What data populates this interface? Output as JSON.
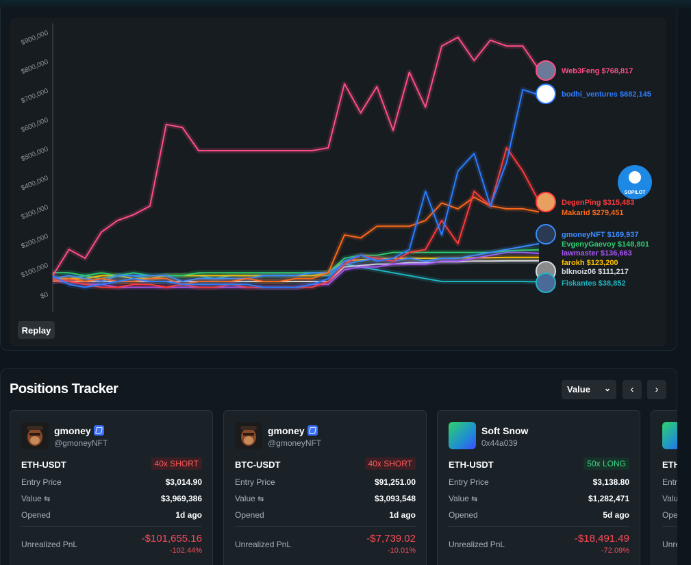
{
  "chart": {
    "replay_label": "Replay",
    "y_ticks": [
      "$0",
      "$100,000",
      "$200,000",
      "$300,000",
      "$400,000",
      "$500,000",
      "$600,000",
      "$700,000",
      "$800,000",
      "$900,000"
    ],
    "logo_text": "SOPILOT",
    "traders": [
      {
        "label": "Web3Feng $768,817",
        "color": "#ff4f86"
      },
      {
        "label": "bodhi_ventures $682,145",
        "color": "#2d7dff"
      },
      {
        "label": "DegenPing $315,483",
        "color": "#ff3b3b"
      },
      {
        "label": "Makarid $279,451",
        "color": "#ff6a1a"
      },
      {
        "label": "gmoneyNFT $169,937",
        "color": "#3b8cff"
      },
      {
        "label": "EvgenyGaevoy $148,801",
        "color": "#2ecc71"
      },
      {
        "label": "lawmaster $136,663",
        "color": "#a855f7"
      },
      {
        "label": "farokh $123,200",
        "color": "#ffc400"
      },
      {
        "label": "blknoiz06 $111,217",
        "color": "#d7dde2"
      },
      {
        "label": "Fiskantes $38,852",
        "color": "#1fb5c2"
      }
    ]
  },
  "chart_data": {
    "type": "line",
    "title": "",
    "xlabel": "",
    "ylabel": "",
    "ylim": [
      0,
      900000
    ],
    "series": [
      {
        "name": "Web3Feng",
        "values": [
          60000,
          150000,
          120000,
          210000,
          250000,
          270000,
          300000,
          580000,
          570000,
          490000,
          490000,
          490000,
          490000,
          490000,
          490000,
          490000,
          490000,
          500000,
          720000,
          620000,
          710000,
          560000,
          760000,
          640000,
          850000,
          880000,
          800000,
          870000,
          850000,
          850000,
          768817
        ]
      },
      {
        "name": "bodhi_ventures",
        "values": [
          60000,
          30000,
          20000,
          30000,
          40000,
          50000,
          40000,
          40000,
          30000,
          30000,
          30000,
          30000,
          30000,
          20000,
          20000,
          20000,
          30000,
          50000,
          110000,
          130000,
          110000,
          120000,
          150000,
          350000,
          200000,
          420000,
          480000,
          300000,
          450000,
          700000,
          682145
        ]
      },
      {
        "name": "DegenPing",
        "values": [
          50000,
          40000,
          30000,
          20000,
          20000,
          30000,
          30000,
          20000,
          30000,
          20000,
          20000,
          30000,
          20000,
          20000,
          20000,
          20000,
          20000,
          40000,
          100000,
          130000,
          120000,
          110000,
          140000,
          150000,
          250000,
          170000,
          350000,
          300000,
          500000,
          420000,
          315483
        ]
      },
      {
        "name": "Makarid",
        "values": [
          40000,
          50000,
          40000,
          50000,
          40000,
          40000,
          50000,
          50000,
          30000,
          40000,
          40000,
          40000,
          50000,
          40000,
          40000,
          50000,
          50000,
          70000,
          200000,
          190000,
          230000,
          230000,
          230000,
          250000,
          310000,
          290000,
          330000,
          300000,
          290000,
          290000,
          279451
        ]
      },
      {
        "name": "gmoneyNFT",
        "values": [
          50000,
          60000,
          50000,
          40000,
          60000,
          60000,
          60000,
          60000,
          40000,
          50000,
          50000,
          50000,
          50000,
          60000,
          60000,
          60000,
          70000,
          70000,
          100000,
          110000,
          120000,
          110000,
          120000,
          110000,
          120000,
          120000,
          130000,
          140000,
          150000,
          160000,
          169937
        ]
      },
      {
        "name": "EvgenyGaevoy",
        "values": [
          70000,
          70000,
          60000,
          70000,
          60000,
          70000,
          60000,
          60000,
          60000,
          70000,
          70000,
          70000,
          70000,
          70000,
          70000,
          70000,
          70000,
          70000,
          120000,
          130000,
          130000,
          140000,
          140000,
          140000,
          140000,
          140000,
          140000,
          140000,
          145000,
          148000,
          148801
        ]
      },
      {
        "name": "lawmaster",
        "values": [
          40000,
          40000,
          30000,
          30000,
          20000,
          20000,
          20000,
          20000,
          20000,
          20000,
          20000,
          20000,
          20000,
          20000,
          20000,
          20000,
          30000,
          30000,
          80000,
          90000,
          90000,
          100000,
          100000,
          100000,
          110000,
          110000,
          120000,
          130000,
          140000,
          140000,
          136663
        ]
      },
      {
        "name": "farokh",
        "values": [
          50000,
          50000,
          50000,
          60000,
          60000,
          50000,
          50000,
          60000,
          60000,
          60000,
          60000,
          60000,
          60000,
          60000,
          60000,
          60000,
          60000,
          70000,
          110000,
          115000,
          118000,
          120000,
          120000,
          120000,
          120000,
          121000,
          122000,
          122000,
          123000,
          123000,
          123200
        ]
      },
      {
        "name": "blknoiz06",
        "values": [
          50000,
          40000,
          40000,
          40000,
          40000,
          40000,
          40000,
          40000,
          40000,
          40000,
          40000,
          40000,
          40000,
          40000,
          40000,
          40000,
          40000,
          40000,
          90000,
          95000,
          100000,
          100000,
          105000,
          105000,
          108000,
          108000,
          110000,
          110000,
          111000,
          111000,
          111217
        ]
      },
      {
        "name": "Fiskantes",
        "values": [
          50000,
          50000,
          60000,
          50000,
          60000,
          60000,
          50000,
          60000,
          60000,
          60000,
          50000,
          60000,
          60000,
          60000,
          60000,
          60000,
          60000,
          60000,
          100000,
          90000,
          80000,
          70000,
          60000,
          50000,
          40000,
          40000,
          40000,
          40000,
          40000,
          40000,
          38852
        ]
      }
    ]
  },
  "positions": {
    "title": "Positions Tracker",
    "sort_value": "Value",
    "prev_icon": "‹",
    "next_icon": "›",
    "swap_icon": "⇆",
    "labels": {
      "entry": "Entry Price",
      "value": "Value",
      "opened": "Opened",
      "pnl": "Unrealized PnL"
    },
    "cards": [
      {
        "name": "gmoney",
        "handle": "@gmoneyNFT",
        "pair": "ETH-USDT",
        "badge": "40x SHORT",
        "side": "short",
        "entry": "$3,014.90",
        "value": "$3,969,386",
        "opened": "1d ago",
        "pnl": "-$101,655.16",
        "pnl_pct": "-102.44%"
      },
      {
        "name": "gmoney",
        "handle": "@gmoneyNFT",
        "pair": "BTC-USDT",
        "badge": "40x SHORT",
        "side": "short",
        "entry": "$91,251.00",
        "value": "$3,093,548",
        "opened": "1d ago",
        "pnl": "-$7,739.02",
        "pnl_pct": "-10.01%"
      },
      {
        "name": "Soft Snow",
        "handle": "0x44a039",
        "pair": "ETH-USDT",
        "badge": "50x LONG",
        "side": "long",
        "entry": "$3,138.80",
        "value": "$1,282,471",
        "opened": "5d ago",
        "pnl": "-$18,491.49",
        "pnl_pct": "-72.09%"
      },
      {
        "name": "",
        "handle": "",
        "pair": "ETH-",
        "badge": "",
        "side": "long",
        "entry": "",
        "value": "",
        "opened": "",
        "pnl": "",
        "pnl_pct": ""
      }
    ],
    "partial_labels": {
      "entry": "Entr",
      "value": "Valu",
      "opened": "Ope",
      "pnl": "Unre"
    }
  }
}
